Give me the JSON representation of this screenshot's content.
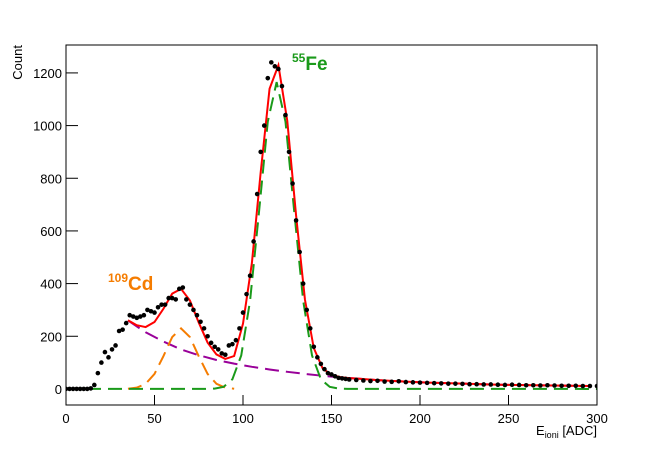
{
  "chart_data": {
    "type": "scatter",
    "y_label": "Count",
    "x_label": {
      "main": "E",
      "subscript": "ioni",
      "unit": " [ADC]"
    },
    "xlim": [
      0,
      300
    ],
    "ylim": [
      -61,
      1306
    ],
    "xticks": [
      0,
      50,
      100,
      150,
      200,
      250,
      300
    ],
    "yticks": [
      0,
      200,
      400,
      600,
      800,
      1000,
      1200
    ],
    "annotations": [
      {
        "superscript": "109",
        "text": "Cd",
        "color": "#f57c00"
      },
      {
        "superscript": "55",
        "text": "Fe",
        "color": "#1a9a1a"
      }
    ],
    "series": [
      {
        "kind": "line",
        "dash": true,
        "color": "#990099",
        "x": [
          35,
          45,
          55,
          65,
          75,
          85,
          95,
          105,
          115,
          125,
          135,
          145,
          155,
          165,
          175,
          185,
          195,
          205,
          215,
          225,
          235,
          245,
          255,
          265,
          275,
          285,
          295
        ],
        "values": [
          260,
          215,
          180,
          150,
          128,
          110,
          96,
          84,
          74,
          65,
          57,
          50,
          44,
          39,
          34,
          30,
          27,
          24,
          22,
          20,
          18,
          16,
          15,
          14,
          13,
          12,
          11
        ]
      },
      {
        "kind": "line",
        "dash": true,
        "color": "#f57c00",
        "x": [
          35,
          40,
          45,
          50,
          55,
          60,
          65,
          70,
          75,
          80,
          85,
          90,
          95
        ],
        "values": [
          0.9,
          4.9,
          19.5,
          57,
          124,
          197,
          230,
          197,
          124,
          57,
          19.5,
          4.9,
          0.9
        ]
      },
      {
        "kind": "line",
        "dash": true,
        "color": "#1a9a1a",
        "x": [
          0,
          79,
          84,
          89,
          94,
          99,
          104,
          109,
          114,
          119,
          124,
          129,
          134,
          139,
          144,
          149,
          154,
          159,
          300
        ],
        "values": [
          0,
          0.2,
          1.3,
          7.9,
          36.6,
          127,
          335,
          669,
          1015,
          1165,
          1015,
          669,
          335,
          127,
          36.6,
          7.9,
          1.3,
          0.2,
          0
        ]
      },
      {
        "kind": "line",
        "dash": false,
        "color": "#ff0000",
        "x": [
          35,
          40,
          45,
          50,
          55,
          60,
          65,
          70,
          75,
          80,
          85,
          90,
          95,
          100,
          105,
          110,
          115,
          120,
          125,
          130,
          135,
          140,
          145,
          150,
          155,
          160,
          165,
          175,
          185,
          195,
          205,
          215,
          225,
          235,
          245,
          255,
          265,
          275,
          285,
          295
        ],
        "values": [
          261,
          242,
          235,
          254,
          304,
          362,
          380,
          336,
          252,
          176,
          131,
          114,
          125,
          248,
          477,
          823,
          1140,
          1229,
          1019,
          658,
          339,
          155,
          78,
          53,
          45,
          41,
          39,
          34,
          30,
          27,
          24,
          22,
          20,
          18,
          16,
          15,
          14,
          13,
          12,
          11
        ]
      },
      {
        "kind": "points",
        "color": "#000000",
        "x": [
          0,
          2,
          4,
          6,
          8,
          10,
          12,
          14,
          16,
          18,
          20,
          22,
          24,
          26,
          28,
          30,
          32,
          34,
          36,
          38,
          40,
          42,
          44,
          46,
          48,
          50,
          52,
          54,
          56,
          58,
          60,
          62,
          64,
          66,
          68,
          70,
          72,
          74,
          76,
          78,
          80,
          82,
          84,
          86,
          88,
          90,
          92,
          94,
          96,
          98,
          100,
          102,
          104,
          106,
          108,
          110,
          112,
          114,
          116,
          118,
          120,
          122,
          124,
          126,
          128,
          130,
          132,
          134,
          136,
          138,
          140,
          142,
          144,
          146,
          148,
          150,
          152,
          154,
          156,
          158,
          160,
          164,
          168,
          172,
          176,
          180,
          184,
          188,
          192,
          196,
          200,
          204,
          208,
          212,
          216,
          220,
          224,
          228,
          232,
          236,
          240,
          244,
          248,
          252,
          256,
          260,
          264,
          268,
          272,
          276,
          280,
          284,
          288,
          292,
          296,
          300
        ],
        "values": [
          0,
          0,
          0,
          0,
          0,
          0,
          0,
          2,
          15,
          60,
          100,
          140,
          120,
          150,
          165,
          220,
          225,
          250,
          280,
          275,
          270,
          275,
          280,
          300,
          295,
          290,
          310,
          320,
          320,
          345,
          345,
          340,
          380,
          385,
          340,
          320,
          300,
          280,
          255,
          230,
          200,
          175,
          160,
          150,
          135,
          130,
          165,
          170,
          185,
          230,
          290,
          360,
          430,
          560,
          740,
          900,
          1000,
          1180,
          1240,
          1225,
          1215,
          1150,
          1040,
          900,
          780,
          640,
          520,
          400,
          300,
          230,
          160,
          120,
          95,
          75,
          60,
          55,
          48,
          42,
          40,
          38,
          36,
          34,
          32,
          30,
          31,
          28,
          27,
          29,
          26,
          25,
          24,
          23,
          22,
          21,
          20,
          20,
          19,
          18,
          18,
          17,
          17,
          16,
          15,
          16,
          15,
          14,
          14,
          13,
          14,
          13,
          12,
          12,
          12,
          11,
          11,
          11
        ]
      }
    ]
  }
}
